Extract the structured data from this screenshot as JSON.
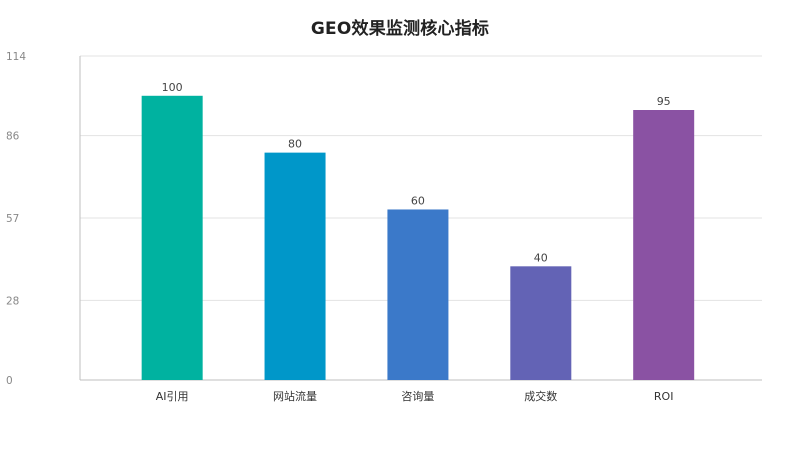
{
  "chart_data": {
    "type": "bar",
    "title": "GEO效果监测核心指标",
    "categories": [
      "AI引用",
      "网站流量",
      "咨询量",
      "成交数",
      "ROI"
    ],
    "values": [
      100,
      80,
      60,
      40,
      95
    ],
    "colors": [
      "#00b2a0",
      "#0097c9",
      "#3b79c9",
      "#6363b5",
      "#8a52a3"
    ],
    "ylim": [
      0,
      114
    ],
    "yticks": [
      0,
      28,
      57,
      86,
      114
    ],
    "grid": true,
    "legend": "none"
  }
}
